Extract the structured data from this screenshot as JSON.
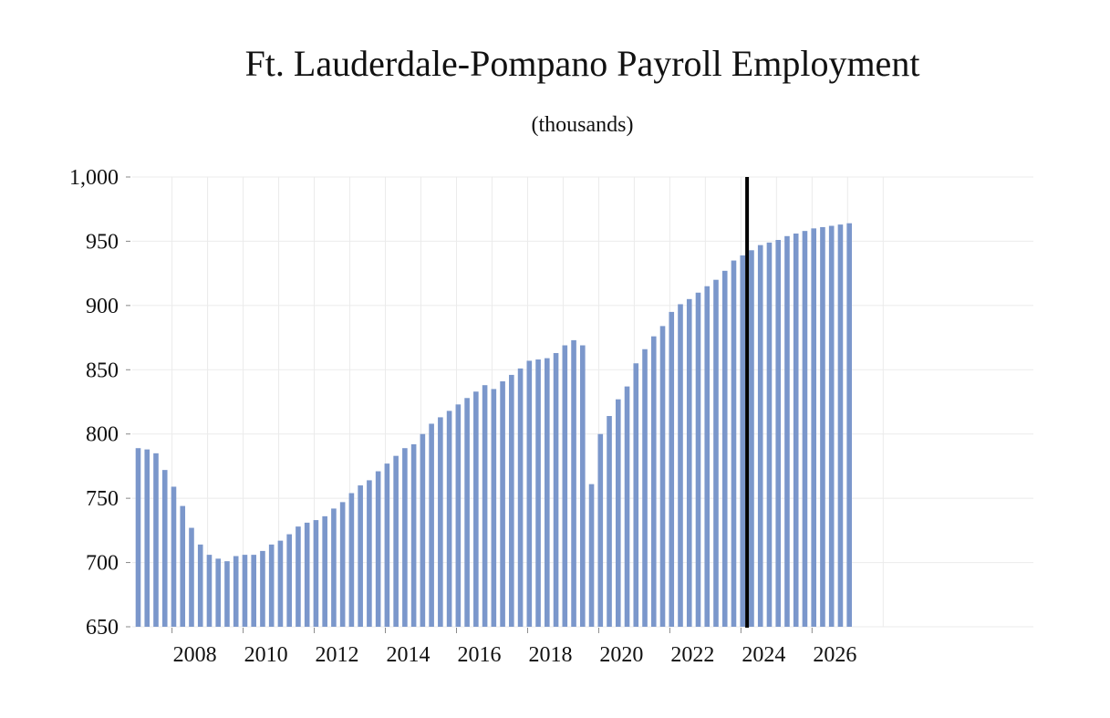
{
  "chart_data": {
    "type": "bar",
    "title": "Ft. Lauderdale-Pompano Payroll Employment",
    "subtitle": "(thousands)",
    "xlabel": "",
    "ylabel": "",
    "ylim": [
      650,
      1000
    ],
    "yticks": [
      650,
      700,
      750,
      800,
      850,
      900,
      950,
      1000
    ],
    "ytick_labels": [
      "650",
      "700",
      "750",
      "800",
      "850",
      "900",
      "950",
      "1,000"
    ],
    "xtick_labels": [
      "2008",
      "2010",
      "2012",
      "2014",
      "2016",
      "2018",
      "2020",
      "2022",
      "2024",
      "2026"
    ],
    "x_start": "2007 Q1",
    "frequency": "quarterly",
    "grid": true,
    "bar_color": "#7b97cb",
    "forecast_divider_color": "#000000",
    "forecast_start_label": "2024 Q2",
    "values": [
      789,
      788,
      785,
      772,
      759,
      744,
      727,
      714,
      706,
      703,
      701,
      705,
      706,
      706,
      709,
      714,
      717,
      722,
      728,
      731,
      733,
      736,
      742,
      747,
      754,
      760,
      764,
      771,
      777,
      783,
      789,
      792,
      800,
      808,
      813,
      818,
      823,
      828,
      833,
      838,
      835,
      841,
      846,
      851,
      857,
      858,
      859,
      863,
      869,
      873,
      869,
      761,
      800,
      814,
      827,
      837,
      855,
      866,
      876,
      884,
      895,
      901,
      905,
      910,
      915,
      920,
      927,
      935,
      939,
      943,
      947,
      949,
      951,
      954,
      956,
      958,
      960,
      961,
      962,
      963,
      964
    ]
  }
}
